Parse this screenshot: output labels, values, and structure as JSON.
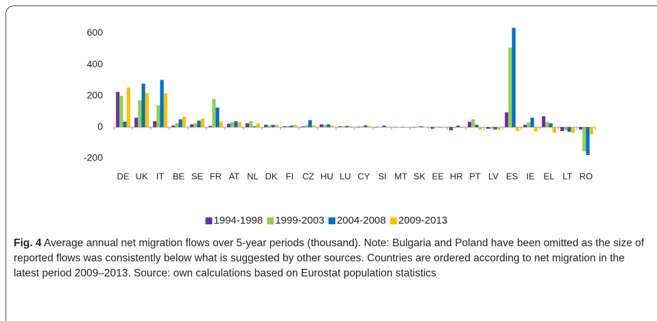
{
  "chart_data": {
    "type": "bar",
    "categories": [
      "DE",
      "UK",
      "IT",
      "BE",
      "SE",
      "FR",
      "AT",
      "NL",
      "DK",
      "FI",
      "CZ",
      "HU",
      "LU",
      "CY",
      "SI",
      "MT",
      "SK",
      "EE",
      "HR",
      "PT",
      "LV",
      "ES",
      "IE",
      "EL",
      "LT",
      "RO"
    ],
    "series": [
      {
        "name": "1994-1998",
        "color": "#7030a0",
        "values": [
          225,
          60,
          38,
          10,
          18,
          8,
          22,
          25,
          15,
          5,
          5,
          18,
          5,
          3,
          2,
          1,
          2,
          -10,
          -20,
          35,
          -10,
          95,
          15,
          70,
          -25,
          -15
        ]
      },
      {
        "name": "1999-2003",
        "color": "#92d050",
        "values": [
          200,
          172,
          140,
          25,
          25,
          180,
          32,
          38,
          10,
          8,
          12,
          15,
          5,
          5,
          3,
          1,
          3,
          -3,
          -5,
          50,
          -10,
          508,
          30,
          35,
          -20,
          -155
        ]
      },
      {
        "name": "2004-2008",
        "color": "#0070c0",
        "values": [
          35,
          278,
          302,
          50,
          42,
          125,
          38,
          5,
          15,
          10,
          45,
          18,
          8,
          12,
          10,
          2,
          5,
          -2,
          10,
          15,
          -15,
          635,
          60,
          25,
          -30,
          -178
        ]
      },
      {
        "name": "2009-2013",
        "color": "#ffc000",
        "values": [
          253,
          218,
          215,
          68,
          55,
          35,
          32,
          25,
          15,
          15,
          10,
          10,
          8,
          8,
          3,
          1,
          3,
          -3,
          -5,
          -15,
          -18,
          -25,
          -28,
          -35,
          -35,
          -45
        ]
      }
    ],
    "ylim": [
      -200,
      700
    ],
    "yticks": [
      -200,
      0,
      200,
      400,
      600
    ],
    "grid": false,
    "legend": "bottom"
  },
  "caption": {
    "label": "Fig. 4",
    "text": "Average annual net migration flows over 5-year periods (thousand). Note: Bulgaria and Poland have been omitted as the size of reported flows was consistently below what is suggested by other sources. Countries are ordered according to net migration in the latest period 2009–2013. Source: own calculations based on Eurostat population statistics"
  }
}
